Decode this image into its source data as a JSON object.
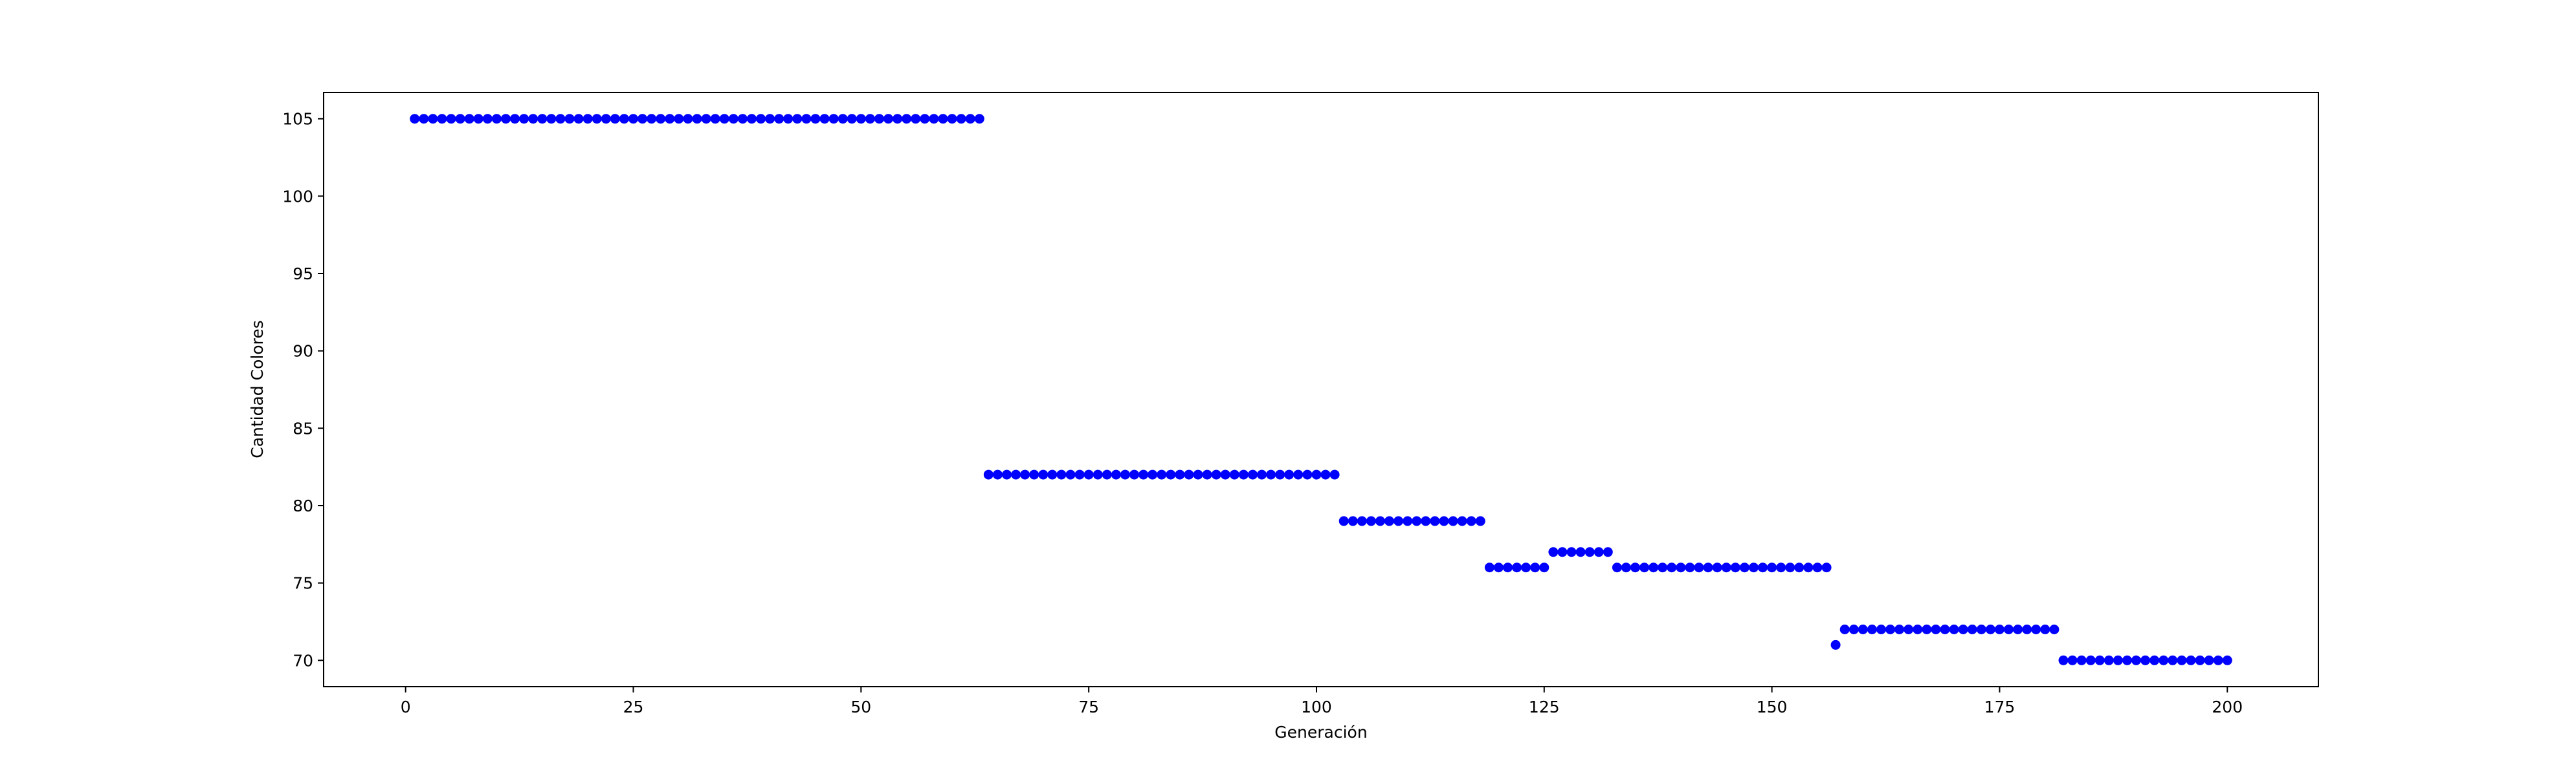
{
  "chart_data": {
    "type": "scatter",
    "title": "",
    "xlabel": "Generación",
    "ylabel": "Cantidad Colores",
    "xlim": [
      -9,
      210
    ],
    "ylim": [
      68.3,
      106.7
    ],
    "x_ticks": [
      0,
      25,
      50,
      75,
      100,
      125,
      150,
      175,
      200
    ],
    "y_ticks": [
      70,
      75,
      80,
      85,
      90,
      95,
      100,
      105
    ],
    "grid": false,
    "marker_color": "#0000ff",
    "series": [
      {
        "segments": [
          {
            "x_start": 1,
            "x_end": 63,
            "y": 105
          },
          {
            "x_start": 64,
            "x_end": 102,
            "y": 82
          },
          {
            "x_start": 103,
            "x_end": 118,
            "y": 79
          },
          {
            "x_start": 119,
            "x_end": 125,
            "y": 76
          },
          {
            "x_start": 126,
            "x_end": 132,
            "y": 77
          },
          {
            "x_start": 133,
            "x_end": 156,
            "y": 76
          },
          {
            "x_start": 157,
            "x_end": 157,
            "y": 71
          },
          {
            "x_start": 158,
            "x_end": 181,
            "y": 72
          },
          {
            "x_start": 182,
            "x_end": 200,
            "y": 70
          }
        ]
      }
    ]
  }
}
